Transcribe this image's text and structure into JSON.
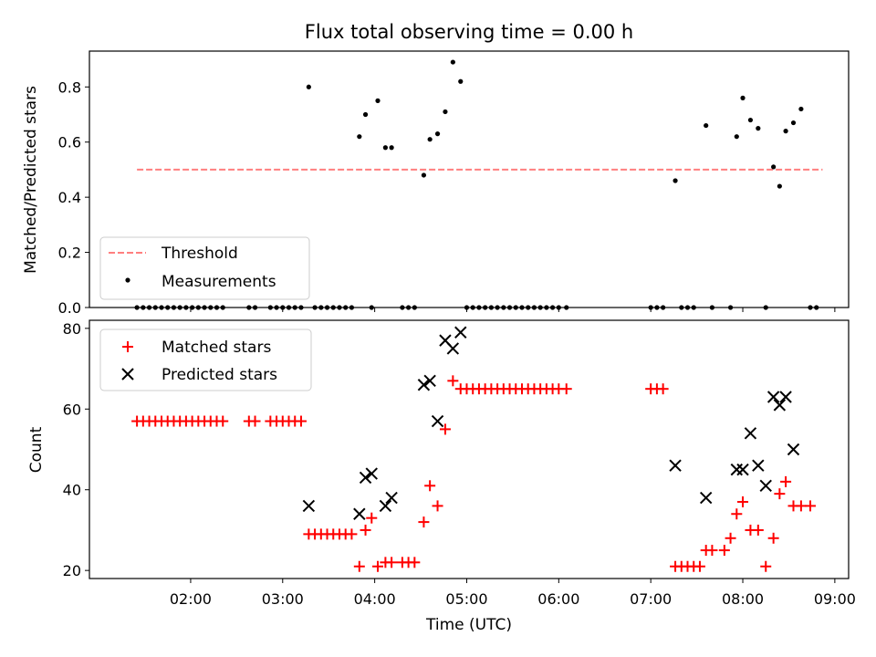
{
  "chart_data": [
    {
      "type": "scatter",
      "title": "Flux total observing time = 0.00 h",
      "xlabel": "",
      "ylabel": "Matched/Predicted stars",
      "ylim": [
        0,
        0.93
      ],
      "yticks": [
        0.0,
        0.2,
        0.4,
        0.6,
        0.8
      ],
      "ytick_labels": [
        "0.0",
        "0.2",
        "0.4",
        "0.6",
        "0.8"
      ],
      "grid": false,
      "legend": {
        "placement": "lower-left",
        "entries": [
          "Threshold",
          "Measurements"
        ]
      },
      "series": [
        {
          "name": "Threshold",
          "kind": "dashed-line",
          "color": "#ff7f7f",
          "points": [
            [
              "01:25",
              0.5
            ],
            [
              "08:52",
              0.5
            ]
          ]
        },
        {
          "name": "Measurements",
          "kind": "points",
          "color": "#000000",
          "points": [
            [
              "01:25",
              0
            ],
            [
              "01:29",
              0
            ],
            [
              "01:33",
              0
            ],
            [
              "01:37",
              0
            ],
            [
              "01:41",
              0
            ],
            [
              "01:45",
              0
            ],
            [
              "01:49",
              0
            ],
            [
              "01:53",
              0
            ],
            [
              "01:57",
              0
            ],
            [
              "02:01",
              0
            ],
            [
              "02:05",
              0
            ],
            [
              "02:09",
              0
            ],
            [
              "02:13",
              0
            ],
            [
              "02:17",
              0
            ],
            [
              "02:21",
              0
            ],
            [
              "02:38",
              0
            ],
            [
              "02:42",
              0
            ],
            [
              "02:52",
              0
            ],
            [
              "02:56",
              0
            ],
            [
              "03:00",
              0
            ],
            [
              "03:04",
              0
            ],
            [
              "03:08",
              0
            ],
            [
              "03:12",
              0
            ],
            [
              "03:17",
              0.8
            ],
            [
              "03:21",
              0
            ],
            [
              "03:25",
              0
            ],
            [
              "03:29",
              0
            ],
            [
              "03:33",
              0
            ],
            [
              "03:37",
              0
            ],
            [
              "03:41",
              0
            ],
            [
              "03:45",
              0
            ],
            [
              "03:50",
              0.62
            ],
            [
              "03:54",
              0.7
            ],
            [
              "03:58",
              0
            ],
            [
              "04:02",
              0.75
            ],
            [
              "04:07",
              0.58
            ],
            [
              "04:11",
              0.58
            ],
            [
              "04:18",
              0
            ],
            [
              "04:22",
              0
            ],
            [
              "04:26",
              0
            ],
            [
              "04:32",
              0.48
            ],
            [
              "04:36",
              0.61
            ],
            [
              "04:41",
              0.63
            ],
            [
              "04:46",
              0.71
            ],
            [
              "04:51",
              0.89
            ],
            [
              "04:56",
              0.82
            ],
            [
              "05:00",
              0
            ],
            [
              "05:04",
              0
            ],
            [
              "05:08",
              0
            ],
            [
              "05:12",
              0
            ],
            [
              "05:16",
              0
            ],
            [
              "05:20",
              0
            ],
            [
              "05:24",
              0
            ],
            [
              "05:28",
              0
            ],
            [
              "05:32",
              0
            ],
            [
              "05:36",
              0
            ],
            [
              "05:40",
              0
            ],
            [
              "05:44",
              0
            ],
            [
              "05:48",
              0
            ],
            [
              "05:52",
              0
            ],
            [
              "05:56",
              0
            ],
            [
              "06:00",
              0
            ],
            [
              "06:05",
              0
            ],
            [
              "07:00",
              0
            ],
            [
              "07:04",
              0
            ],
            [
              "07:08",
              0
            ],
            [
              "07:16",
              0.46
            ],
            [
              "07:20",
              0
            ],
            [
              "07:24",
              0
            ],
            [
              "07:28",
              0
            ],
            [
              "07:36",
              0.66
            ],
            [
              "07:40",
              0
            ],
            [
              "07:52",
              0
            ],
            [
              "07:56",
              0.62
            ],
            [
              "08:00",
              0.76
            ],
            [
              "08:05",
              0.68
            ],
            [
              "08:10",
              0.65
            ],
            [
              "08:15",
              0
            ],
            [
              "08:20",
              0.51
            ],
            [
              "08:24",
              0.44
            ],
            [
              "08:28",
              0.64
            ],
            [
              "08:33",
              0.67
            ],
            [
              "08:38",
              0.72
            ],
            [
              "08:44",
              0
            ],
            [
              "08:48",
              0
            ]
          ]
        }
      ]
    },
    {
      "type": "scatter",
      "title": "",
      "xlabel": "Time (UTC)",
      "ylabel": "Count",
      "xlim": [
        "00:54",
        "09:09"
      ],
      "ylim": [
        18,
        82
      ],
      "xticks": [
        "02:00",
        "03:00",
        "04:00",
        "05:00",
        "06:00",
        "07:00",
        "08:00",
        "09:00"
      ],
      "yticks": [
        20,
        40,
        60,
        80
      ],
      "ytick_labels": [
        "20",
        "40",
        "60",
        "80"
      ],
      "grid": false,
      "legend": {
        "placement": "upper-left",
        "entries": [
          "Matched stars",
          "Predicted stars"
        ]
      },
      "series": [
        {
          "name": "Matched stars",
          "marker": "+",
          "color": "#ff0000",
          "points": [
            [
              "01:25",
              57
            ],
            [
              "01:29",
              57
            ],
            [
              "01:33",
              57
            ],
            [
              "01:37",
              57
            ],
            [
              "01:41",
              57
            ],
            [
              "01:45",
              57
            ],
            [
              "01:49",
              57
            ],
            [
              "01:53",
              57
            ],
            [
              "01:57",
              57
            ],
            [
              "02:01",
              57
            ],
            [
              "02:05",
              57
            ],
            [
              "02:09",
              57
            ],
            [
              "02:13",
              57
            ],
            [
              "02:17",
              57
            ],
            [
              "02:21",
              57
            ],
            [
              "02:38",
              57
            ],
            [
              "02:42",
              57
            ],
            [
              "02:52",
              57
            ],
            [
              "02:56",
              57
            ],
            [
              "03:00",
              57
            ],
            [
              "03:04",
              57
            ],
            [
              "03:08",
              57
            ],
            [
              "03:12",
              57
            ],
            [
              "03:17",
              29
            ],
            [
              "03:21",
              29
            ],
            [
              "03:25",
              29
            ],
            [
              "03:29",
              29
            ],
            [
              "03:33",
              29
            ],
            [
              "03:37",
              29
            ],
            [
              "03:41",
              29
            ],
            [
              "03:45",
              29
            ],
            [
              "03:50",
              21
            ],
            [
              "03:54",
              30
            ],
            [
              "03:58",
              33
            ],
            [
              "04:02",
              21
            ],
            [
              "04:07",
              22
            ],
            [
              "04:11",
              22
            ],
            [
              "04:18",
              22
            ],
            [
              "04:22",
              22
            ],
            [
              "04:26",
              22
            ],
            [
              "04:32",
              32
            ],
            [
              "04:36",
              41
            ],
            [
              "04:41",
              36
            ],
            [
              "04:46",
              55
            ],
            [
              "04:51",
              67
            ],
            [
              "04:56",
              65
            ],
            [
              "05:00",
              65
            ],
            [
              "05:04",
              65
            ],
            [
              "05:08",
              65
            ],
            [
              "05:12",
              65
            ],
            [
              "05:16",
              65
            ],
            [
              "05:20",
              65
            ],
            [
              "05:24",
              65
            ],
            [
              "05:28",
              65
            ],
            [
              "05:32",
              65
            ],
            [
              "05:36",
              65
            ],
            [
              "05:40",
              65
            ],
            [
              "05:44",
              65
            ],
            [
              "05:48",
              65
            ],
            [
              "05:52",
              65
            ],
            [
              "05:56",
              65
            ],
            [
              "06:00",
              65
            ],
            [
              "06:05",
              65
            ],
            [
              "07:00",
              65
            ],
            [
              "07:04",
              65
            ],
            [
              "07:08",
              65
            ],
            [
              "07:16",
              21
            ],
            [
              "07:20",
              21
            ],
            [
              "07:24",
              21
            ],
            [
              "07:28",
              21
            ],
            [
              "07:32",
              21
            ],
            [
              "07:36",
              25
            ],
            [
              "07:40",
              25
            ],
            [
              "07:48",
              25
            ],
            [
              "07:52",
              28
            ],
            [
              "07:56",
              34
            ],
            [
              "08:00",
              37
            ],
            [
              "08:05",
              30
            ],
            [
              "08:10",
              30
            ],
            [
              "08:15",
              21
            ],
            [
              "08:20",
              28
            ],
            [
              "08:24",
              39
            ],
            [
              "08:28",
              42
            ],
            [
              "08:33",
              36
            ],
            [
              "08:38",
              36
            ],
            [
              "08:44",
              36
            ]
          ]
        },
        {
          "name": "Predicted stars",
          "marker": "x",
          "color": "#000000",
          "points": [
            [
              "03:17",
              36
            ],
            [
              "03:50",
              34
            ],
            [
              "03:54",
              43
            ],
            [
              "03:58",
              44
            ],
            [
              "04:07",
              36
            ],
            [
              "04:11",
              38
            ],
            [
              "04:32",
              66
            ],
            [
              "04:36",
              67
            ],
            [
              "04:41",
              57
            ],
            [
              "04:46",
              77
            ],
            [
              "04:51",
              75
            ],
            [
              "04:56",
              79
            ],
            [
              "07:16",
              46
            ],
            [
              "07:36",
              38
            ],
            [
              "07:56",
              45
            ],
            [
              "08:00",
              45
            ],
            [
              "08:05",
              54
            ],
            [
              "08:10",
              46
            ],
            [
              "08:15",
              41
            ],
            [
              "08:20",
              63
            ],
            [
              "08:24",
              61
            ],
            [
              "08:28",
              63
            ],
            [
              "08:33",
              50
            ]
          ]
        }
      ]
    }
  ]
}
